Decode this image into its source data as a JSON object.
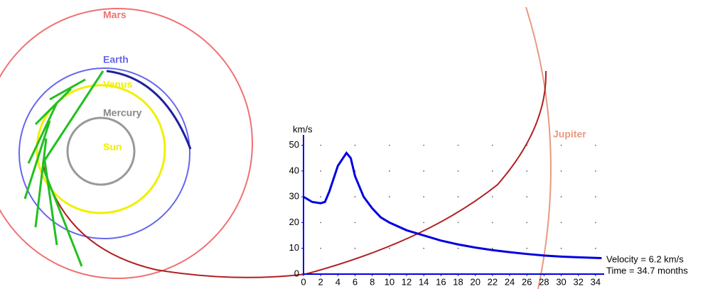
{
  "bodies": [
    "Mars",
    "Earth",
    "Venus",
    "Mercury",
    "Sun",
    "Jupiter"
  ],
  "readouts": [
    "Velocity = 6.2 km/s",
    "Time = 34.7 months"
  ],
  "chart_data": {
    "type": "line",
    "y_label": "km/s",
    "color": "#0000e0",
    "x": [
      0,
      1,
      2,
      2.5,
      3,
      4,
      5,
      5.5,
      6,
      7,
      8,
      9,
      10,
      12,
      14,
      16,
      18,
      20,
      22,
      24,
      26,
      28,
      30,
      32,
      34.7
    ],
    "values": [
      30,
      28,
      27.5,
      28,
      32,
      42,
      47,
      45,
      38,
      30,
      25.5,
      22,
      20,
      17,
      15,
      13,
      11.5,
      10.3,
      9.3,
      8.5,
      7.8,
      7.2,
      6.8,
      6.5,
      6.2
    ],
    "xlim": [
      0,
      35
    ],
    "ylim": [
      0,
      54
    ],
    "xticks": [
      0,
      2,
      4,
      6,
      8,
      10,
      12,
      14,
      16,
      18,
      20,
      22,
      24,
      26,
      28,
      30,
      32,
      34
    ],
    "yticks": [
      0,
      10,
      20,
      30,
      40,
      50
    ],
    "grid": true
  }
}
